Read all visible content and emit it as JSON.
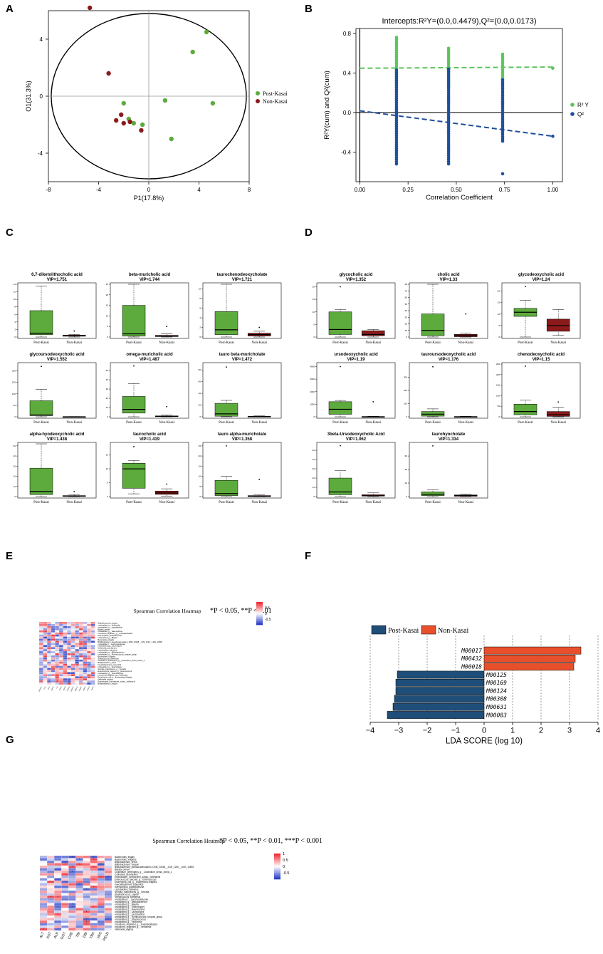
{
  "panels": {
    "a": "A",
    "b": "B",
    "c": "C",
    "d": "D",
    "e": "E",
    "f": "F",
    "g": "G"
  },
  "colors": {
    "post": "#5cab3c",
    "non": "#8b1a1a",
    "r2": "#5cc45c",
    "q2": "#1f4e9c",
    "lda_post": "#1f4e79",
    "lda_non": "#e8502c"
  },
  "chart_data": [
    {
      "id": "A",
      "type": "scatter",
      "xlabel": "P1(17.8%)",
      "ylabel": "O1(31.3%)",
      "xlim": [
        -8,
        8
      ],
      "ylim": [
        -6,
        6
      ],
      "xticks": [
        "-8",
        "-4",
        "0",
        "4",
        "8"
      ],
      "yticks": [
        "4",
        "0",
        "-4"
      ],
      "legend": [
        "Post-Kasai",
        "Non-Kasai"
      ],
      "series": [
        {
          "name": "Post-Kasai",
          "points": [
            [
              4.6,
              4.5
            ],
            [
              3.5,
              3.1
            ],
            [
              5.1,
              -0.5
            ],
            [
              1.3,
              -0.3
            ],
            [
              -2.0,
              -0.5
            ],
            [
              -1.6,
              -1.6
            ],
            [
              -1.2,
              -1.9
            ],
            [
              -0.5,
              -2.0
            ],
            [
              1.8,
              -3.0
            ]
          ]
        },
        {
          "name": "Non-Kasai",
          "points": [
            [
              -4.7,
              6.2
            ],
            [
              -3.2,
              1.6
            ],
            [
              -2.2,
              -1.3
            ],
            [
              -2.6,
              -1.7
            ],
            [
              -2.0,
              -1.9
            ],
            [
              -1.5,
              -1.8
            ],
            [
              -0.6,
              -2.4
            ]
          ]
        }
      ]
    },
    {
      "id": "B",
      "type": "scatter",
      "title": "Intercepts:R²Y=(0.0,0.4479),Q²=(0.0,0.0173)",
      "xlabel": "Correlation Coefficient",
      "ylabel": "R²Y(cum) and Q²(cum)",
      "xlim": [
        -0.02,
        1.05
      ],
      "ylim": [
        -0.7,
        0.85
      ],
      "xticks": [
        "0.00",
        "0.25",
        "0.50",
        "0.75",
        "1.00"
      ],
      "yticks": [
        "0.8",
        "0.4",
        "0.0",
        "-0.4"
      ],
      "legend": [
        "R² Y",
        "Q²"
      ],
      "series": [
        {
          "name": "R2Y",
          "columns": [
            [
              0.19,
              0.28,
              0.76
            ],
            [
              0.46,
              0.26,
              0.65
            ],
            [
              0.74,
              0.34,
              0.59
            ]
          ],
          "extra": [
            [
              1.0,
              0.4479
            ]
          ],
          "line": [
            [
              0,
              0.4479
            ],
            [
              1.0,
              0.46
            ]
          ]
        },
        {
          "name": "Q2",
          "columns": [
            [
              0.19,
              -0.52,
              0.43
            ],
            [
              0.46,
              -0.52,
              0.44
            ],
            [
              0.74,
              -0.29,
              0.33
            ]
          ],
          "extra": [
            [
              1.0,
              -0.24
            ],
            [
              0.74,
              -0.62
            ]
          ],
          "line": [
            [
              0,
              0.0173
            ],
            [
              1.0,
              -0.24
            ]
          ]
        }
      ]
    },
    {
      "id": "C",
      "type": "box",
      "categories": [
        "Post-Kasai",
        "Non-Kasai"
      ],
      "plots": [
        {
          "title": "6,7-diketolithocholic acid",
          "vip": "VIP=1.751",
          "post": [
            0.0,
            0.6,
            1.0,
            7.0,
            13.5
          ],
          "non": [
            0.0,
            0.2,
            0.3,
            0.5,
            0.7
          ],
          "post_out": [],
          "non_out": [
            1.6
          ],
          "ymax": 14,
          "yticks": [
            "0",
            "2",
            "4",
            "6",
            "8",
            "10",
            "12",
            "14"
          ]
        },
        {
          "title": "beta-muricholic acid",
          "vip": "VIP=1.744",
          "post": [
            0.0,
            0.4,
            1.5,
            15.0,
            25.0
          ],
          "non": [
            0.0,
            0.2,
            0.4,
            0.8,
            1.5
          ],
          "post_out": [],
          "non_out": [
            5.0
          ],
          "ymax": 25,
          "yticks": [
            "0",
            "5",
            "10",
            "15",
            "20",
            "25"
          ]
        },
        {
          "title": "taurochenodeoxycholate",
          "vip": "VIP=1.721",
          "post": [
            0.0,
            0.5,
            1.5,
            5.3,
            11.0
          ],
          "non": [
            0.0,
            0.2,
            0.5,
            0.8,
            1.2
          ],
          "post_out": [],
          "non_out": [
            2.0
          ],
          "ymax": 11,
          "yticks": [
            "0",
            "2",
            "4",
            "6",
            "8",
            "10"
          ]
        },
        {
          "title": "glycoursodeoxycholic acid",
          "vip": "VIP=1.552",
          "post": [
            0.0,
            5.0,
            8.0,
            70.0,
            120.0
          ],
          "non": [
            0.0,
            0.0,
            0.0,
            0.5,
            1.0
          ],
          "post_out": [
            220.0
          ],
          "non_out": [],
          "ymax": 230,
          "yticks": [
            "0",
            "50",
            "100",
            "150",
            "200"
          ]
        },
        {
          "title": "omega-muricholic acid",
          "vip": "VIP=1.487",
          "post": [
            0.0,
            4.0,
            8.0,
            22.0,
            36.0
          ],
          "non": [
            0.0,
            0.2,
            0.4,
            1.0,
            2.0
          ],
          "post_out": [
            55.0
          ],
          "non_out": [
            11.0
          ],
          "ymax": 57,
          "yticks": [
            "0",
            "10",
            "20",
            "30",
            "40",
            "50"
          ]
        },
        {
          "title": "tauro beta-muricholate",
          "vip": "VIP=1.472",
          "post": [
            0.0,
            1.0,
            5.0,
            23.0,
            28.0
          ],
          "non": [
            0.0,
            0.2,
            0.4,
            0.8,
            1.5
          ],
          "post_out": [
            85.0
          ],
          "non_out": [],
          "ymax": 90,
          "yticks": [
            "0",
            "20",
            "40",
            "60",
            "80"
          ]
        },
        {
          "title": "alpha-hyodeoxycholic acid",
          "vip": "VIP=1.438",
          "post": [
            0.0,
            2.0,
            5.0,
            28.0,
            52.0
          ],
          "non": [
            0.0,
            0.2,
            0.5,
            1.0,
            2.0
          ],
          "post_out": [],
          "non_out": [
            5.0
          ],
          "ymax": 52,
          "yticks": [
            "0",
            "10",
            "20",
            "30",
            "40",
            "50"
          ]
        },
        {
          "title": "taurocholic acid",
          "vip": "VIP=1.419",
          "post": [
            1.0,
            3.0,
            10.0,
            12.0,
            13.0
          ],
          "non": [
            0.2,
            0.8,
            1.3,
            2.0,
            2.8
          ],
          "post_out": [
            18.0
          ],
          "non_out": [
            4.5
          ],
          "ymax": 19,
          "yticks": [
            "0",
            "5",
            "10",
            "15"
          ]
        },
        {
          "title": "tauro alpha-muricholate",
          "vip": "VIP=1.358",
          "post": [
            0.0,
            0.5,
            1.5,
            8.0,
            10.0
          ],
          "non": [
            0.0,
            0.0,
            0.2,
            0.5,
            0.8
          ],
          "post_out": [
            25.0
          ],
          "non_out": [
            8.5
          ],
          "ymax": 26,
          "yticks": [
            "0",
            "5",
            "10",
            "15",
            "20",
            "25"
          ]
        }
      ]
    },
    {
      "id": "D",
      "type": "box",
      "categories": [
        "Post-Kasai",
        "Non-Kasai"
      ],
      "plots": [
        {
          "title": "glycocholic acid",
          "vip": "VIP=1.352",
          "post": [
            0.0,
            1.0,
            3.0,
            10.0,
            11.0
          ],
          "non": [
            0.0,
            0.5,
            1.0,
            2.5,
            3.0
          ],
          "post_out": [
            20.0
          ],
          "non_out": [],
          "ymax": 21,
          "yticks": [
            "0",
            "5",
            "10",
            "15",
            "20"
          ]
        },
        {
          "title": "cholic acid",
          "vip": "VIP=1.33",
          "post": [
            0.0,
            2.0,
            10.0,
            35.0,
            80.0
          ],
          "non": [
            0.0,
            0.5,
            2.0,
            4.0,
            6.0
          ],
          "post_out": [],
          "non_out": [
            35.0
          ],
          "ymax": 80,
          "yticks": [
            "0",
            "10",
            "20",
            "30",
            "40",
            "50",
            "60",
            "70",
            "80"
          ]
        },
        {
          "title": "glycodeoxycholic acid",
          "vip": "VIP=1.24",
          "post": [
            0.0,
            9.0,
            10.8,
            12.5,
            16.0
          ],
          "non": [
            0.8,
            2.5,
            5.0,
            7.8,
            12.0
          ],
          "post_out": [
            22.0
          ],
          "non_out": [],
          "ymax": 23,
          "yticks": [
            "0",
            "5",
            "10",
            "15",
            "20"
          ]
        },
        {
          "title": "ursodeoxycholic acid",
          "vip": "VIP=1.19",
          "post": [
            0.0,
            200.0,
            600.0,
            1200.0,
            1300.0
          ],
          "non": [
            0.0,
            0.0,
            0.0,
            20.0,
            40.0
          ],
          "post_out": [
            4000.0
          ],
          "non_out": [
            1200.0
          ],
          "ymax": 4200,
          "yticks": [
            "0",
            "1000",
            "2000",
            "3000",
            "4000"
          ]
        },
        {
          "title": "tauroursodeoxycholic acid",
          "vip": "VIP=1.176",
          "post": [
            0.0,
            5.0,
            20.0,
            40.0,
            60.0
          ],
          "non": [
            0.0,
            0.0,
            0.0,
            2.0,
            4.0
          ],
          "post_out": [
            380.0
          ],
          "non_out": [],
          "ymax": 400,
          "yticks": [
            "0",
            "100",
            "200",
            "300"
          ]
        },
        {
          "title": "chenodeoxycholic acid",
          "vip": "VIP=1.15",
          "post": [
            0.0,
            10.0,
            25.0,
            60.0,
            80.0
          ],
          "non": [
            0.0,
            2.0,
            10.0,
            25.0,
            45.0
          ],
          "post_out": [
            240.0
          ],
          "non_out": [
            70.0
          ],
          "ymax": 250,
          "yticks": [
            "0",
            "50",
            "100",
            "150",
            "200",
            "250"
          ]
        },
        {
          "title": "3beta-Ursodeoxycholic Acid",
          "vip": "VIP=1.062",
          "post": [
            0.0,
            2.0,
            5.0,
            20.0,
            28.0
          ],
          "non": [
            0.0,
            0.5,
            1.0,
            2.0,
            4.0
          ],
          "post_out": [
            55.0
          ],
          "non_out": [],
          "ymax": 57,
          "yticks": [
            "0",
            "10",
            "20",
            "30",
            "40",
            "50"
          ]
        },
        {
          "title": "taurohyocholate",
          "vip": "VIP=1.334",
          "post": [
            0.0,
            1.5,
            3.5,
            7.0,
            10.0
          ],
          "non": [
            0.0,
            0.5,
            1.5,
            2.5,
            3.5
          ],
          "post_out": [
            75.0
          ],
          "non_out": [],
          "ymax": 78,
          "yticks": [
            "0",
            "20",
            "40",
            "60"
          ]
        }
      ]
    },
    {
      "id": "E",
      "type": "heatmap",
      "title": "Spearman Correlation Heatmap",
      "note": "*P < 0.05, **P < 0.01",
      "scale": [
        "0.5",
        "0",
        "-0.5"
      ],
      "columns": [
        "GCDCA",
        "TCA",
        "GCA",
        "GDCA",
        "CA",
        "CDCA",
        "UDCA",
        "TUDCA",
        "GUDCA",
        "TβMCA",
        "TαMCA",
        "βMCA",
        "ωMCA",
        "THCA"
      ],
      "rows": [
        "Staphylococcus_caprae",
        "unclassified_g__Veillonella",
        "unclassified_g__Lactobacillus",
        "Blautia_obeum",
        "unclassified_g__Haemophilus",
        "uncultured_organism_g__Fusicatenibacter",
        "Haemophilus_parainfluenzae",
        "unclassified_g__Blautia",
        "Bacteroides_fragilis",
        "Bifidobacterium_pseudocatenulatum_DSM_20438__JCM_1200__LMG_10505",
        "unclassified_f__Lachnospiraceae",
        "unclassified_g__Lachnospira",
        "Collinsella_aerofaciens",
        "Lactobacillus_salivarius",
        "unclassified_g__Bifidobacterium",
        "unclassified_g__Ruminococcus_torques_group",
        "Bacteroides_vulgatus",
        "Streptococcus_lutetiensis",
        "Clostridium_perfringens_g__Clostridium_sensu_stricto_1",
        "Bifidobacterium_breve",
        "Faecalibacterium_prausnitzii",
        "unclassified_g__Enterobacter",
        "Serratia_marcescens_g__Serratia",
        "Enterococcus_faecium_g__Enterococcus",
        "unclassified_g__Streptococcus",
        "uncultured_organism_g__Veillonella",
        "Escherichia_coli_g__Escherichia-Shigella",
        "Veillonella_atypica",
        "Enterobacter_hormaechei_subsp._hoffmannii",
        "Bifidobacterium_longum"
      ]
    },
    {
      "id": "F",
      "type": "bar",
      "orientation": "horizontal",
      "xlabel": "LDA SCORE (log 10)",
      "xlim": [
        -4,
        4
      ],
      "xticks": [
        "−4",
        "−3",
        "−2",
        "−1",
        "0",
        "1",
        "2",
        "3",
        "4"
      ],
      "legend": [
        "Post-Kasai",
        "Non-Kasai"
      ],
      "categories": [
        "M00017",
        "M00432",
        "M00018",
        "M00125",
        "M00169",
        "M00124",
        "M00308",
        "M00631",
        "M00083"
      ],
      "values": [
        3.4,
        3.2,
        3.15,
        -3.05,
        -3.1,
        -3.1,
        -3.15,
        -3.2,
        -3.4
      ]
    },
    {
      "id": "G",
      "type": "heatmap",
      "title": "Spearman Correlation Heatmap",
      "note": "*P < 0.05, **P < 0.01, ***P < 0.001",
      "scale": [
        "1",
        "0.5",
        "0",
        "-0.5"
      ],
      "columns": [
        "ALT",
        "AST",
        "ALP",
        "GGT",
        "CHE",
        "TBI",
        "DBI",
        "TBA",
        "VAS",
        "PELD"
      ],
      "rows": [
        "Bacteroides_fragilis",
        "Bacteroides_vulgatus",
        "Bifidobacterium_breve",
        "Bifidobacterium_longum",
        "Bifidobacterium_pseudocatenulatum_DSM_20438__JCM_1200__LMG_10505",
        "Blautia_obeum",
        "Clostridium_perfringens_g__Clostridium_sensu_stricto_1",
        "Collinsella_aerofaciens",
        "Enterobacter_hormaechei_subsp._hoffmannii",
        "Enterococcus_faecium_g__Enterococcus",
        "Escherichia_coli_g__Escherichia-Shigella",
        "Faecalibacterium_prausnitzii",
        "Haemophilus_parainfluenzae",
        "Lactobacillus_salivarius",
        "Serratia_marcescens_g__Serratia",
        "Staphylococcus_caprae",
        "Streptococcus_lutetiensis",
        "unclassified_f__Lachnospiraceae",
        "unclassified_g__Bifidobacterium",
        "unclassified_g__Blautia",
        "unclassified_g__Enterobacter",
        "unclassified_g__Haemophilus",
        "unclassified_g__Lachnospira",
        "unclassified_g__Lactobacillus",
        "unclassified_g__Ruminococcus_torques_group",
        "unclassified_g__Streptococcus",
        "unclassified_g__Veillonella",
        "uncultured_organism_g__Fusicatenibacter",
        "uncultured_organism_g__Veillonella",
        "Veillonella_atypica"
      ]
    }
  ]
}
